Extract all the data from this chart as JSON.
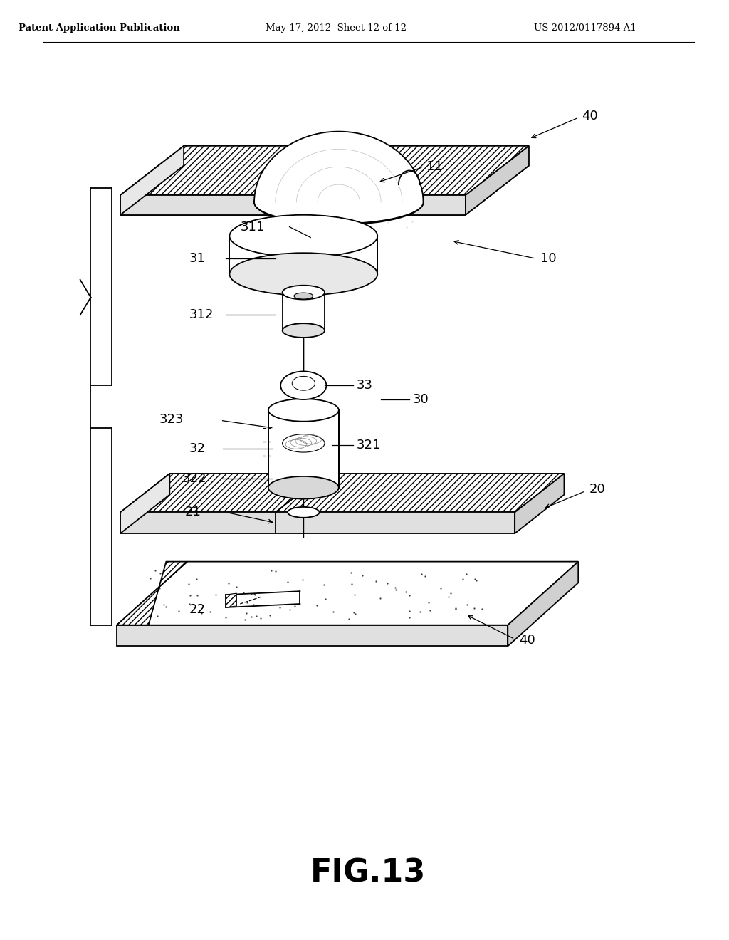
{
  "title": "FIG.13",
  "header_left": "Patent Application Publication",
  "header_center": "May 17, 2012  Sheet 12 of 12",
  "header_right": "US 2012/0117894 A1",
  "bg_color": "#ffffff",
  "line_color": "#000000",
  "labels": {
    "40_top": "40",
    "11": "11",
    "10": "10",
    "311": "311",
    "31": "31",
    "312": "312",
    "33": "33",
    "30": "30",
    "323": "323",
    "321": "321",
    "32": "32",
    "322": "322",
    "21": "21",
    "20": "20",
    "22": "22",
    "40_bot": "40"
  },
  "fig_label_size": 32
}
